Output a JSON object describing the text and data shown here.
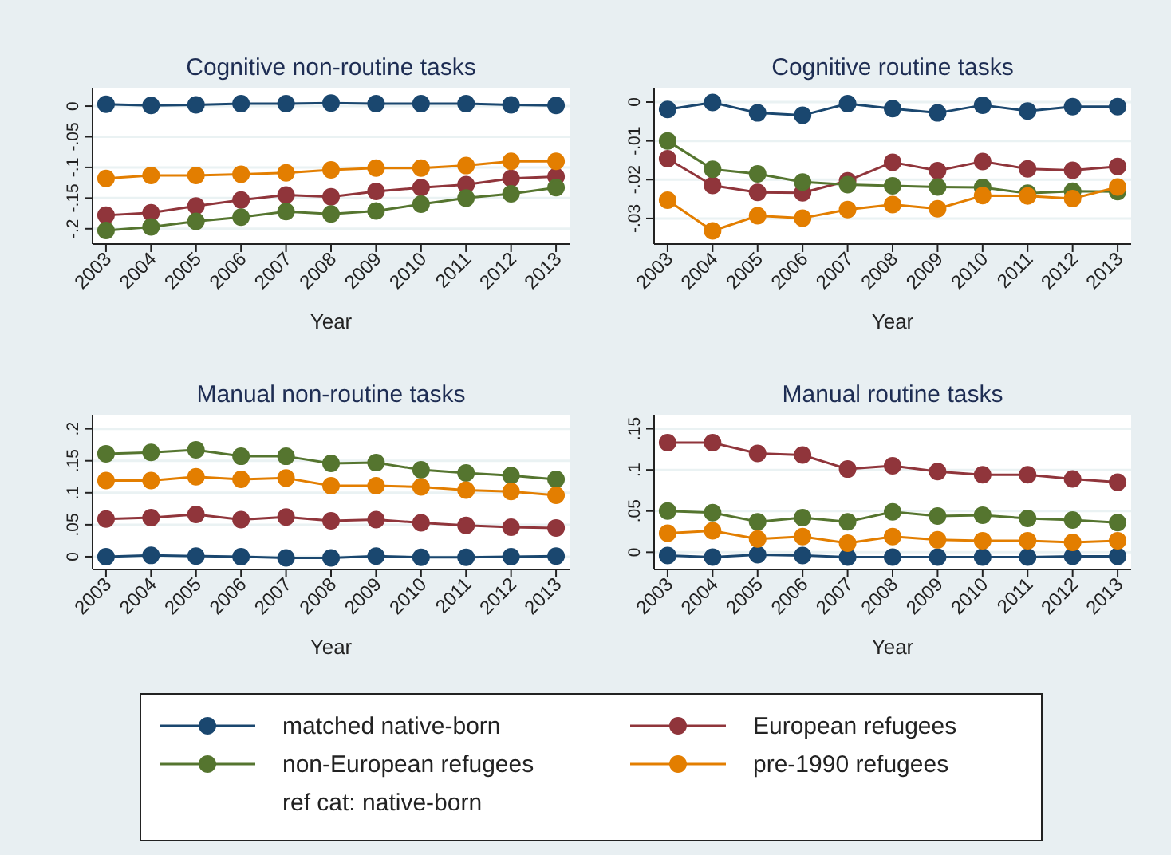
{
  "chart_data": [
    {
      "type": "line",
      "title": "Cognitive non-routine tasks",
      "xlabel": "Year",
      "categories": [
        "2003",
        "2004",
        "2005",
        "2006",
        "2007",
        "2008",
        "2009",
        "2010",
        "2011",
        "2012",
        "2013"
      ],
      "ylim": [
        -0.225,
        0.03
      ],
      "yticks": [
        {
          "value": -0.2,
          "label": "-.2"
        },
        {
          "value": -0.15,
          "label": "-.15"
        },
        {
          "value": -0.1,
          "label": "-.1"
        },
        {
          "value": -0.05,
          "label": "-.05"
        },
        {
          "value": 0,
          "label": "0"
        }
      ],
      "grid": "y",
      "marker": "circle",
      "legend": "bottom",
      "annotations": [
        "ref cat: native-born"
      ],
      "series": [
        {
          "name": "matched native-born",
          "color": "#1a476f",
          "values": [
            0.003,
            0.001,
            0.002,
            0.004,
            0.004,
            0.005,
            0.004,
            0.004,
            0.004,
            0.002,
            0.001
          ]
        },
        {
          "name": "European refugees",
          "color": "#90353b",
          "values": [
            -0.178,
            -0.174,
            -0.163,
            -0.153,
            -0.145,
            -0.148,
            -0.139,
            -0.133,
            -0.128,
            -0.118,
            -0.115
          ]
        },
        {
          "name": "non-European refugees",
          "color": "#55752f",
          "values": [
            -0.203,
            -0.197,
            -0.188,
            -0.181,
            -0.172,
            -0.176,
            -0.171,
            -0.16,
            -0.15,
            -0.143,
            -0.133
          ]
        },
        {
          "name": "pre-1990 refugees",
          "color": "#e37e00",
          "values": [
            -0.118,
            -0.113,
            -0.113,
            -0.111,
            -0.109,
            -0.104,
            -0.101,
            -0.101,
            -0.097,
            -0.09,
            -0.09
          ]
        }
      ]
    },
    {
      "type": "line",
      "title": "Cognitive routine tasks",
      "xlabel": "Year",
      "categories": [
        "2003",
        "2004",
        "2005",
        "2006",
        "2007",
        "2008",
        "2009",
        "2010",
        "2011",
        "2012",
        "2013"
      ],
      "ylim": [
        -0.0366,
        0.0037
      ],
      "yticks": [
        {
          "value": -0.03,
          "label": "-.03"
        },
        {
          "value": -0.02,
          "label": "-.02"
        },
        {
          "value": -0.01,
          "label": "-.01"
        },
        {
          "value": 0,
          "label": "0"
        }
      ],
      "grid": "y",
      "marker": "circle",
      "legend": "bottom",
      "series": [
        {
          "name": "matched native-born",
          "color": "#1a476f",
          "values": [
            -0.0019,
            -0.0001,
            -0.0028,
            -0.0034,
            -0.0004,
            -0.0017,
            -0.0028,
            -0.0008,
            -0.0023,
            -0.0012,
            -0.0012
          ]
        },
        {
          "name": "European refugees",
          "color": "#90353b",
          "values": [
            -0.0146,
            -0.0215,
            -0.0233,
            -0.0234,
            -0.0203,
            -0.0155,
            -0.0177,
            -0.0153,
            -0.0172,
            -0.0176,
            -0.0166
          ]
        },
        {
          "name": "non-European refugees",
          "color": "#55752f",
          "values": [
            -0.01,
            -0.0173,
            -0.0185,
            -0.0206,
            -0.0213,
            -0.0216,
            -0.0219,
            -0.022,
            -0.0235,
            -0.023,
            -0.0231
          ]
        },
        {
          "name": "pre-1990 refugees",
          "color": "#e37e00",
          "values": [
            -0.0253,
            -0.0332,
            -0.0293,
            -0.0299,
            -0.0277,
            -0.0264,
            -0.0275,
            -0.0241,
            -0.0242,
            -0.0249,
            -0.0219
          ]
        }
      ]
    },
    {
      "type": "line",
      "title": "Manual non-routine tasks",
      "xlabel": "Year",
      "categories": [
        "2003",
        "2004",
        "2005",
        "2006",
        "2007",
        "2008",
        "2009",
        "2010",
        "2011",
        "2012",
        "2013"
      ],
      "ylim": [
        -0.02,
        0.222
      ],
      "yticks": [
        {
          "value": 0,
          "label": "0"
        },
        {
          "value": 0.05,
          "label": ".05"
        },
        {
          "value": 0.1,
          "label": ".1"
        },
        {
          "value": 0.15,
          "label": ".15"
        },
        {
          "value": 0.2,
          "label": ".2"
        }
      ],
      "grid": "y",
      "marker": "circle",
      "legend": "bottom",
      "series": [
        {
          "name": "matched native-born",
          "color": "#1a476f",
          "values": [
            0,
            0.002,
            0.001,
            0,
            -0.002,
            -0.002,
            0.001,
            -0.001,
            -0.001,
            0,
            0.001
          ]
        },
        {
          "name": "European refugees",
          "color": "#90353b",
          "values": [
            0.059,
            0.061,
            0.066,
            0.058,
            0.062,
            0.056,
            0.058,
            0.053,
            0.049,
            0.046,
            0.045
          ]
        },
        {
          "name": "non-European refugees",
          "color": "#55752f",
          "values": [
            0.161,
            0.163,
            0.167,
            0.157,
            0.157,
            0.146,
            0.147,
            0.136,
            0.131,
            0.127,
            0.121
          ]
        },
        {
          "name": "pre-1990 refugees",
          "color": "#e37e00",
          "values": [
            0.119,
            0.119,
            0.125,
            0.121,
            0.123,
            0.111,
            0.111,
            0.109,
            0.104,
            0.102,
            0.096
          ]
        }
      ]
    },
    {
      "type": "line",
      "title": "Manual routine tasks",
      "xlabel": "Year",
      "categories": [
        "2003",
        "2004",
        "2005",
        "2006",
        "2007",
        "2008",
        "2009",
        "2010",
        "2011",
        "2012",
        "2013"
      ],
      "ylim": [
        -0.021,
        0.167
      ],
      "yticks": [
        {
          "value": 0,
          "label": "0"
        },
        {
          "value": 0.05,
          "label": ".05"
        },
        {
          "value": 0.1,
          "label": ".1"
        },
        {
          "value": 0.15,
          "label": ".15"
        }
      ],
      "grid": "y",
      "marker": "circle",
      "legend": "bottom",
      "series": [
        {
          "name": "matched native-born",
          "color": "#1a476f",
          "values": [
            -0.004,
            -0.006,
            -0.003,
            -0.004,
            -0.006,
            -0.006,
            -0.006,
            -0.006,
            -0.006,
            -0.005,
            -0.005
          ]
        },
        {
          "name": "European refugees",
          "color": "#90353b",
          "values": [
            0.133,
            0.133,
            0.12,
            0.118,
            0.101,
            0.105,
            0.098,
            0.094,
            0.094,
            0.089,
            0.085
          ]
        },
        {
          "name": "non-European refugees",
          "color": "#55752f",
          "values": [
            0.05,
            0.048,
            0.037,
            0.042,
            0.037,
            0.049,
            0.044,
            0.045,
            0.041,
            0.039,
            0.036
          ]
        },
        {
          "name": "pre-1990 refugees",
          "color": "#e37e00",
          "values": [
            0.023,
            0.026,
            0.016,
            0.019,
            0.011,
            0.019,
            0.015,
            0.014,
            0.014,
            0.012,
            0.014
          ]
        }
      ]
    }
  ]
}
